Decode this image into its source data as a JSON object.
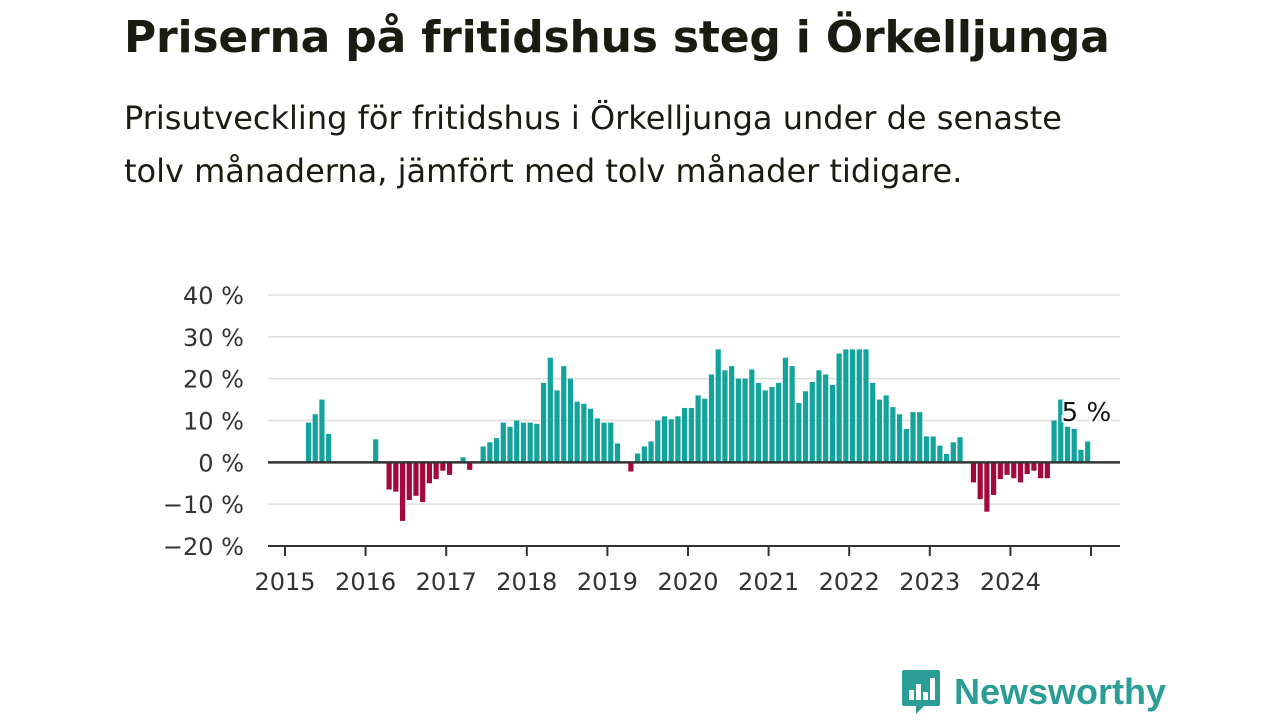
{
  "header": {
    "title": "Priserna på fritidshus steg i Örkelljunga",
    "subtitle": "Prisutveckling för fritidshus i Örkelljunga under de senaste tolv månaderna, jämfört med tolv månader tidigare."
  },
  "brand": {
    "name": "Newsworthy",
    "icon": "newsworthy-logo-icon",
    "color": "#2a9d97"
  },
  "colors": {
    "positive": "#12a39c",
    "negative": "#a3083f",
    "grid": "#dddddd",
    "axis": "#333333"
  },
  "chart_data": {
    "type": "bar",
    "title": "Priserna på fritidshus steg i Örkelljunga",
    "xlabel": "",
    "ylabel": "",
    "ylim": [
      -20,
      40
    ],
    "yticks": [
      -20,
      -10,
      0,
      10,
      20,
      30,
      40
    ],
    "ytick_labels": [
      "−20 %",
      "−10 %",
      "0 %",
      "10 %",
      "20 %",
      "30 %",
      "40 %"
    ],
    "xtick_labels": [
      "2015",
      "2016",
      "2017",
      "2018",
      "2019",
      "2020",
      "2021",
      "2022",
      "2023",
      "2024"
    ],
    "grid": true,
    "x_start": "2015-01",
    "frequency": "monthly",
    "values": [
      null,
      null,
      null,
      9.5,
      11.5,
      15,
      6.8,
      null,
      null,
      null,
      null,
      null,
      null,
      5.5,
      null,
      -6.5,
      -7,
      -14,
      -9,
      -8,
      -9.5,
      -5,
      -4,
      -2,
      -3,
      null,
      1.2,
      -1.8,
      null,
      3.8,
      4.8,
      5.8,
      9.5,
      8.5,
      10,
      9.5,
      9.5,
      9.2,
      19,
      25,
      17.2,
      23,
      20,
      14.5,
      14,
      12.8,
      10.5,
      9.5,
      9.5,
      4.5,
      null,
      -2.2,
      2.1,
      3.8,
      5,
      10,
      11,
      10.3,
      11,
      13,
      13,
      16,
      15.2,
      21,
      27,
      22,
      23,
      20,
      20,
      22.2,
      19,
      17.2,
      18,
      19,
      25,
      23,
      14.2,
      17,
      19.2,
      22,
      21,
      18.5,
      26,
      27,
      27,
      27,
      27,
      19,
      15,
      16,
      13.2,
      11.5,
      8,
      12,
      12,
      6.2,
      6.2,
      4,
      2,
      4.8,
      6,
      null,
      -4.8,
      -8.8,
      -11.8,
      -7.8,
      -4,
      -3,
      -3.8,
      -4.8,
      -2.8,
      -2,
      -3.8,
      -3.8,
      10,
      15,
      8.5,
      8,
      3,
      5
    ],
    "annotation": {
      "label": "5 %",
      "index": 119
    }
  }
}
